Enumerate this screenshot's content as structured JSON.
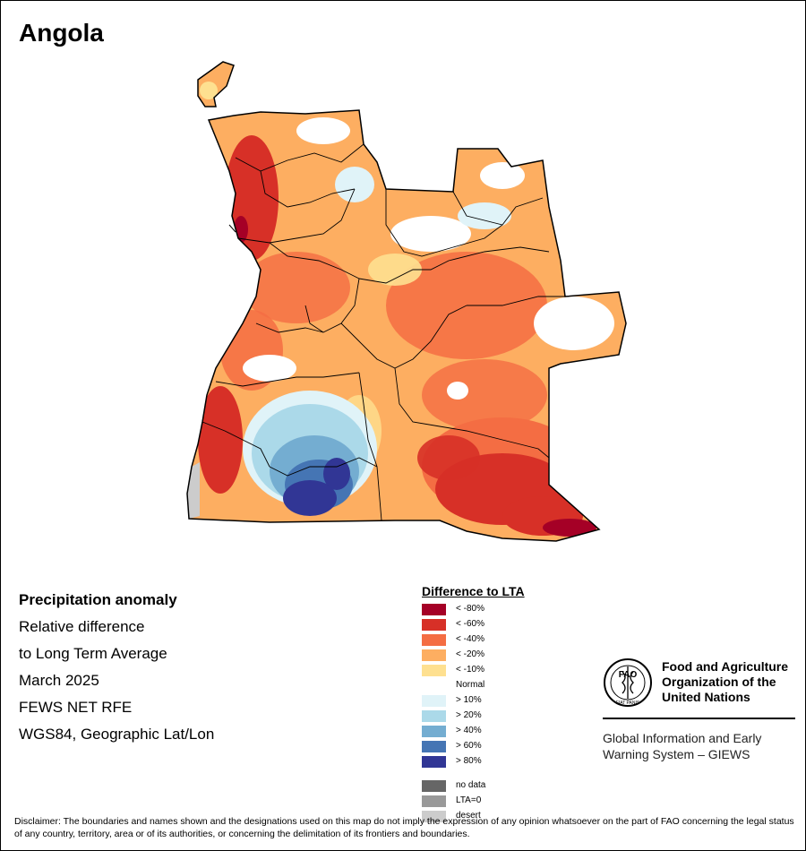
{
  "map": {
    "title": "Angola",
    "info_lines": [
      "Precipitation anomaly",
      "Relative difference",
      "to Long Term Average",
      "March 2025",
      "FEWS NET RFE",
      "WGS84, Geographic Lat/Lon"
    ]
  },
  "legend": {
    "title": "Difference to LTA",
    "items": [
      {
        "label": "< -80%",
        "color": "#a50026"
      },
      {
        "label": "< -60%",
        "color": "#d73027"
      },
      {
        "label": "< -40%",
        "color": "#f46d43"
      },
      {
        "label": "< -20%",
        "color": "#fdae61"
      },
      {
        "label": "< -10%",
        "color": "#fee090"
      },
      {
        "label": "Normal",
        "color": "#ffffff"
      },
      {
        "label": "> 10%",
        "color": "#e0f3f8"
      },
      {
        "label": "> 20%",
        "color": "#abd9e9"
      },
      {
        "label": "> 40%",
        "color": "#74add1"
      },
      {
        "label": "> 60%",
        "color": "#4575b4"
      },
      {
        "label": "> 80%",
        "color": "#313695"
      }
    ],
    "extra": [
      {
        "label": "no data",
        "color": "#666666"
      },
      {
        "label": "LTA=0",
        "color": "#999999"
      },
      {
        "label": "desert",
        "color": "#cccccc"
      }
    ]
  },
  "org": {
    "name_lines": [
      "Food and Agriculture",
      "Organization of the",
      "United Nations"
    ],
    "logo_text": "FAO",
    "logo_motto": "FIAT PANIS",
    "system_lines": [
      "Global Information and Early",
      "Warning System – GIEWS"
    ]
  },
  "disclaimer": "Disclaimer: The boundaries and names shown and the designations used on this map do not imply the expression of any opinion whatsoever on the part of FAO concerning the legal status of any country, territory, area or of its authorities, or concerning the delimitation of its frontiers and boundaries."
}
